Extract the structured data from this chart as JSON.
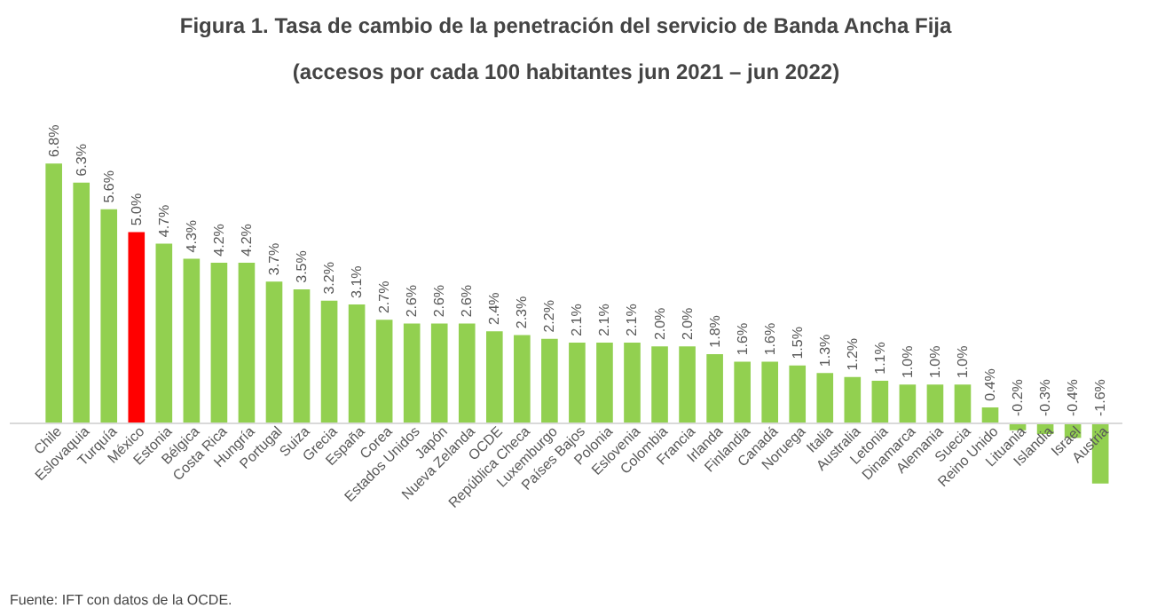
{
  "chart_data": {
    "type": "bar",
    "title": "Figura 1. Tasa de cambio de la penetración del servicio de Banda Ancha Fija",
    "subtitle": "(accesos por cada 100 habitantes jun 2021 – jun 2022)",
    "categories": [
      "Chile",
      "Eslovaquia",
      "Turquía",
      "México",
      "Estonia",
      "Bélgica",
      "Costa Rica",
      "Hungría",
      "Portugal",
      "Suiza",
      "Grecia",
      "España",
      "Corea",
      "Estados Unidos",
      "Japón",
      "Nueva Zelanda",
      "OCDE",
      "República Checa",
      "Luxemburgo",
      "Países Bajos",
      "Polonia",
      "Eslovenia",
      "Colombia",
      "Francia",
      "Irlanda",
      "Finlandia",
      "Canadá",
      "Noruega",
      "Italia",
      "Australia",
      "Letonia",
      "Dinamarca",
      "Alemania",
      "Suecia",
      "Reino Unido",
      "Lituania",
      "Islandia",
      "Israel",
      "Austria"
    ],
    "values": [
      6.8,
      6.3,
      5.6,
      5.0,
      4.7,
      4.3,
      4.2,
      4.2,
      3.7,
      3.5,
      3.2,
      3.1,
      2.7,
      2.6,
      2.6,
      2.6,
      2.4,
      2.3,
      2.2,
      2.1,
      2.1,
      2.1,
      2.0,
      2.0,
      1.8,
      1.6,
      1.6,
      1.5,
      1.3,
      1.2,
      1.1,
      1.0,
      1.0,
      1.0,
      0.4,
      -0.2,
      -0.3,
      -0.4,
      -1.6
    ],
    "value_labels": [
      "6.8%",
      "6.3%",
      "5.6%",
      "5.0%",
      "4.7%",
      "4.3%",
      "4.2%",
      "4.2%",
      "3.7%",
      "3.5%",
      "3.2%",
      "3.1%",
      "2.7%",
      "2.6%",
      "2.6%",
      "2.6%",
      "2.4%",
      "2.3%",
      "2.2%",
      "2.1%",
      "2.1%",
      "2.1%",
      "2.0%",
      "2.0%",
      "1.8%",
      "1.6%",
      "1.6%",
      "1.5%",
      "1.3%",
      "1.2%",
      "1.1%",
      "1.0%",
      "1.0%",
      "1.0%",
      "0.4%",
      "-0.2%",
      "-0.3%",
      "-0.4%",
      "-1.6%"
    ],
    "colors": [
      "#92d050",
      "#92d050",
      "#92d050",
      "#ff0000",
      "#92d050",
      "#92d050",
      "#92d050",
      "#92d050",
      "#92d050",
      "#92d050",
      "#92d050",
      "#92d050",
      "#92d050",
      "#92d050",
      "#92d050",
      "#92d050",
      "#92d050",
      "#92d050",
      "#92d050",
      "#92d050",
      "#92d050",
      "#92d050",
      "#92d050",
      "#92d050",
      "#92d050",
      "#92d050",
      "#92d050",
      "#92d050",
      "#92d050",
      "#92d050",
      "#92d050",
      "#92d050",
      "#92d050",
      "#92d050",
      "#92d050",
      "#92d050",
      "#92d050",
      "#92d050",
      "#92d050"
    ],
    "annotations": [
      "Fuente: IFT con datos de la OCDE."
    ],
    "grid": false
  }
}
